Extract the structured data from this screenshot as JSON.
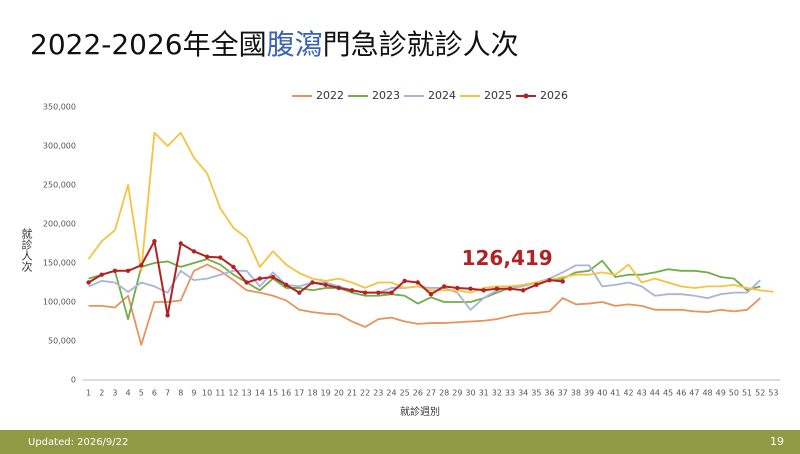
{
  "chart_data": {
    "type": "line",
    "title": [
      "2022-2026年全國",
      "腹瀉",
      "門急診就診人次"
    ],
    "title_highlight_color": "#3a62b5",
    "x_label": "就診週別",
    "y_label": "就診人次",
    "x": [
      1,
      2,
      3,
      4,
      5,
      6,
      7,
      8,
      9,
      10,
      11,
      12,
      13,
      14,
      15,
      16,
      17,
      18,
      19,
      20,
      21,
      22,
      23,
      24,
      25,
      26,
      27,
      28,
      29,
      30,
      31,
      32,
      33,
      34,
      35,
      36,
      37,
      38,
      39,
      40,
      41,
      42,
      43,
      44,
      45,
      46,
      47,
      48,
      49,
      50,
      51,
      52,
      53
    ],
    "ylim": [
      0,
      350000
    ],
    "yticks": [
      0,
      {
        "value": 50000,
        "label": "50,000"
      },
      {
        "value": 100000,
        "label": "100,000"
      },
      {
        "value": 150000,
        "label": "150,000"
      },
      {
        "value": 200000,
        "label": "200,000"
      },
      {
        "value": 250000,
        "label": "250,000"
      },
      {
        "value": 300000,
        "label": "300,000"
      },
      {
        "value": 350000,
        "label": "350,000"
      }
    ],
    "grid": false,
    "series": [
      {
        "name": "2022",
        "color": "#e8935a",
        "values": [
          95000,
          95000,
          93000,
          108000,
          45000,
          100000,
          100000,
          102000,
          140000,
          148000,
          140000,
          128000,
          115000,
          112000,
          108000,
          102000,
          90000,
          87000,
          85000,
          84000,
          75000,
          68000,
          78000,
          80000,
          75000,
          72000,
          73000,
          73000,
          74000,
          75000,
          76000,
          78000,
          82000,
          85000,
          86000,
          88000,
          105000,
          97000,
          98000,
          100000,
          95000,
          97000,
          95000,
          90000,
          90000,
          90000,
          88000,
          87000,
          90000,
          88000,
          90000,
          105000,
          null
        ]
      },
      {
        "name": "2023",
        "color": "#70ad47",
        "values": [
          130000,
          135000,
          140000,
          78000,
          145000,
          150000,
          152000,
          145000,
          150000,
          155000,
          148000,
          135000,
          125000,
          115000,
          130000,
          118000,
          118000,
          115000,
          118000,
          118000,
          112000,
          108000,
          108000,
          110000,
          108000,
          98000,
          106000,
          100000,
          100000,
          100000,
          105000,
          112000,
          118000,
          122000,
          125000,
          128000,
          130000,
          138000,
          140000,
          153000,
          132000,
          135000,
          135000,
          138000,
          142000,
          140000,
          140000,
          138000,
          132000,
          130000,
          115000,
          120000,
          null
        ]
      },
      {
        "name": "2024",
        "color": "#a9b4d8",
        "values": [
          120000,
          127000,
          125000,
          113000,
          125000,
          120000,
          112000,
          140000,
          128000,
          130000,
          135000,
          140000,
          140000,
          120000,
          138000,
          122000,
          120000,
          125000,
          125000,
          120000,
          115000,
          112000,
          112000,
          118000,
          118000,
          120000,
          118000,
          118000,
          112000,
          90000,
          105000,
          115000,
          118000,
          120000,
          125000,
          130000,
          138000,
          147000,
          147000,
          120000,
          122000,
          125000,
          120000,
          108000,
          110000,
          110000,
          108000,
          105000,
          110000,
          112000,
          112000,
          128000,
          null
        ]
      },
      {
        "name": "2025",
        "color": "#f5c242",
        "values": [
          155000,
          178000,
          192000,
          250000,
          140000,
          317000,
          300000,
          317000,
          285000,
          265000,
          220000,
          195000,
          182000,
          145000,
          165000,
          148000,
          137000,
          130000,
          127000,
          130000,
          125000,
          118000,
          125000,
          125000,
          118000,
          120000,
          115000,
          115000,
          115000,
          112000,
          118000,
          120000,
          120000,
          122000,
          125000,
          128000,
          132000,
          135000,
          135000,
          138000,
          135000,
          148000,
          125000,
          130000,
          125000,
          120000,
          118000,
          120000,
          120000,
          122000,
          118000,
          115000,
          113000
        ]
      },
      {
        "name": "2026",
        "color": "#b22222",
        "markers": true,
        "values": [
          125000,
          135000,
          140000,
          140000,
          147000,
          178000,
          83000,
          175000,
          165000,
          158000,
          157000,
          145000,
          125000,
          130000,
          132000,
          122000,
          112000,
          125000,
          122000,
          118000,
          115000,
          112000,
          112000,
          112000,
          127000,
          125000,
          110000,
          120000,
          118000,
          117000,
          115000,
          117000,
          117000,
          115000,
          122000,
          128000,
          126419,
          null,
          null,
          null,
          null,
          null,
          null,
          null,
          null,
          null,
          null,
          null,
          null,
          null,
          null,
          null,
          null
        ]
      }
    ],
    "annotation": {
      "label": "126,419",
      "value": 126419,
      "x": 37,
      "color": "#b22222"
    },
    "footer": {
      "updated": "Updated: 2026/9/22",
      "page": "19",
      "color": "#8f9a45"
    }
  }
}
